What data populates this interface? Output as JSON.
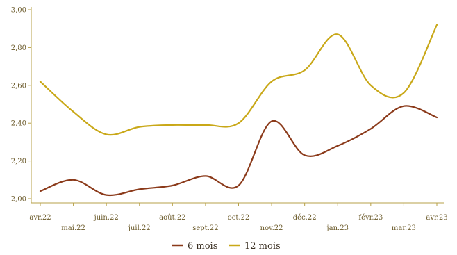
{
  "chart_data": {
    "type": "line",
    "title": "",
    "xlabel": "",
    "ylabel": "",
    "categories": [
      "avr.22",
      "mai.22",
      "juin.22",
      "juil.22",
      "août.22",
      "sept.22",
      "oct.22",
      "nov.22",
      "déc.22",
      "jan.23",
      "févr.23",
      "mar.23",
      "avr.23"
    ],
    "ylim": [
      2.0,
      3.0
    ],
    "yticks": [
      "2,00",
      "2,20",
      "2,40",
      "2,60",
      "2,80",
      "3,00"
    ],
    "grid": false,
    "legend_position": "bottom",
    "series": [
      {
        "name": "6 mois",
        "color": "#8b3a1a",
        "values": [
          2.04,
          2.1,
          2.02,
          2.05,
          2.07,
          2.12,
          2.07,
          2.41,
          2.23,
          2.28,
          2.37,
          2.49,
          2.43
        ]
      },
      {
        "name": "12 mois",
        "color": "#c9a818",
        "values": [
          2.62,
          2.46,
          2.34,
          2.38,
          2.39,
          2.39,
          2.4,
          2.62,
          2.68,
          2.87,
          2.6,
          2.56,
          2.92
        ]
      }
    ]
  }
}
